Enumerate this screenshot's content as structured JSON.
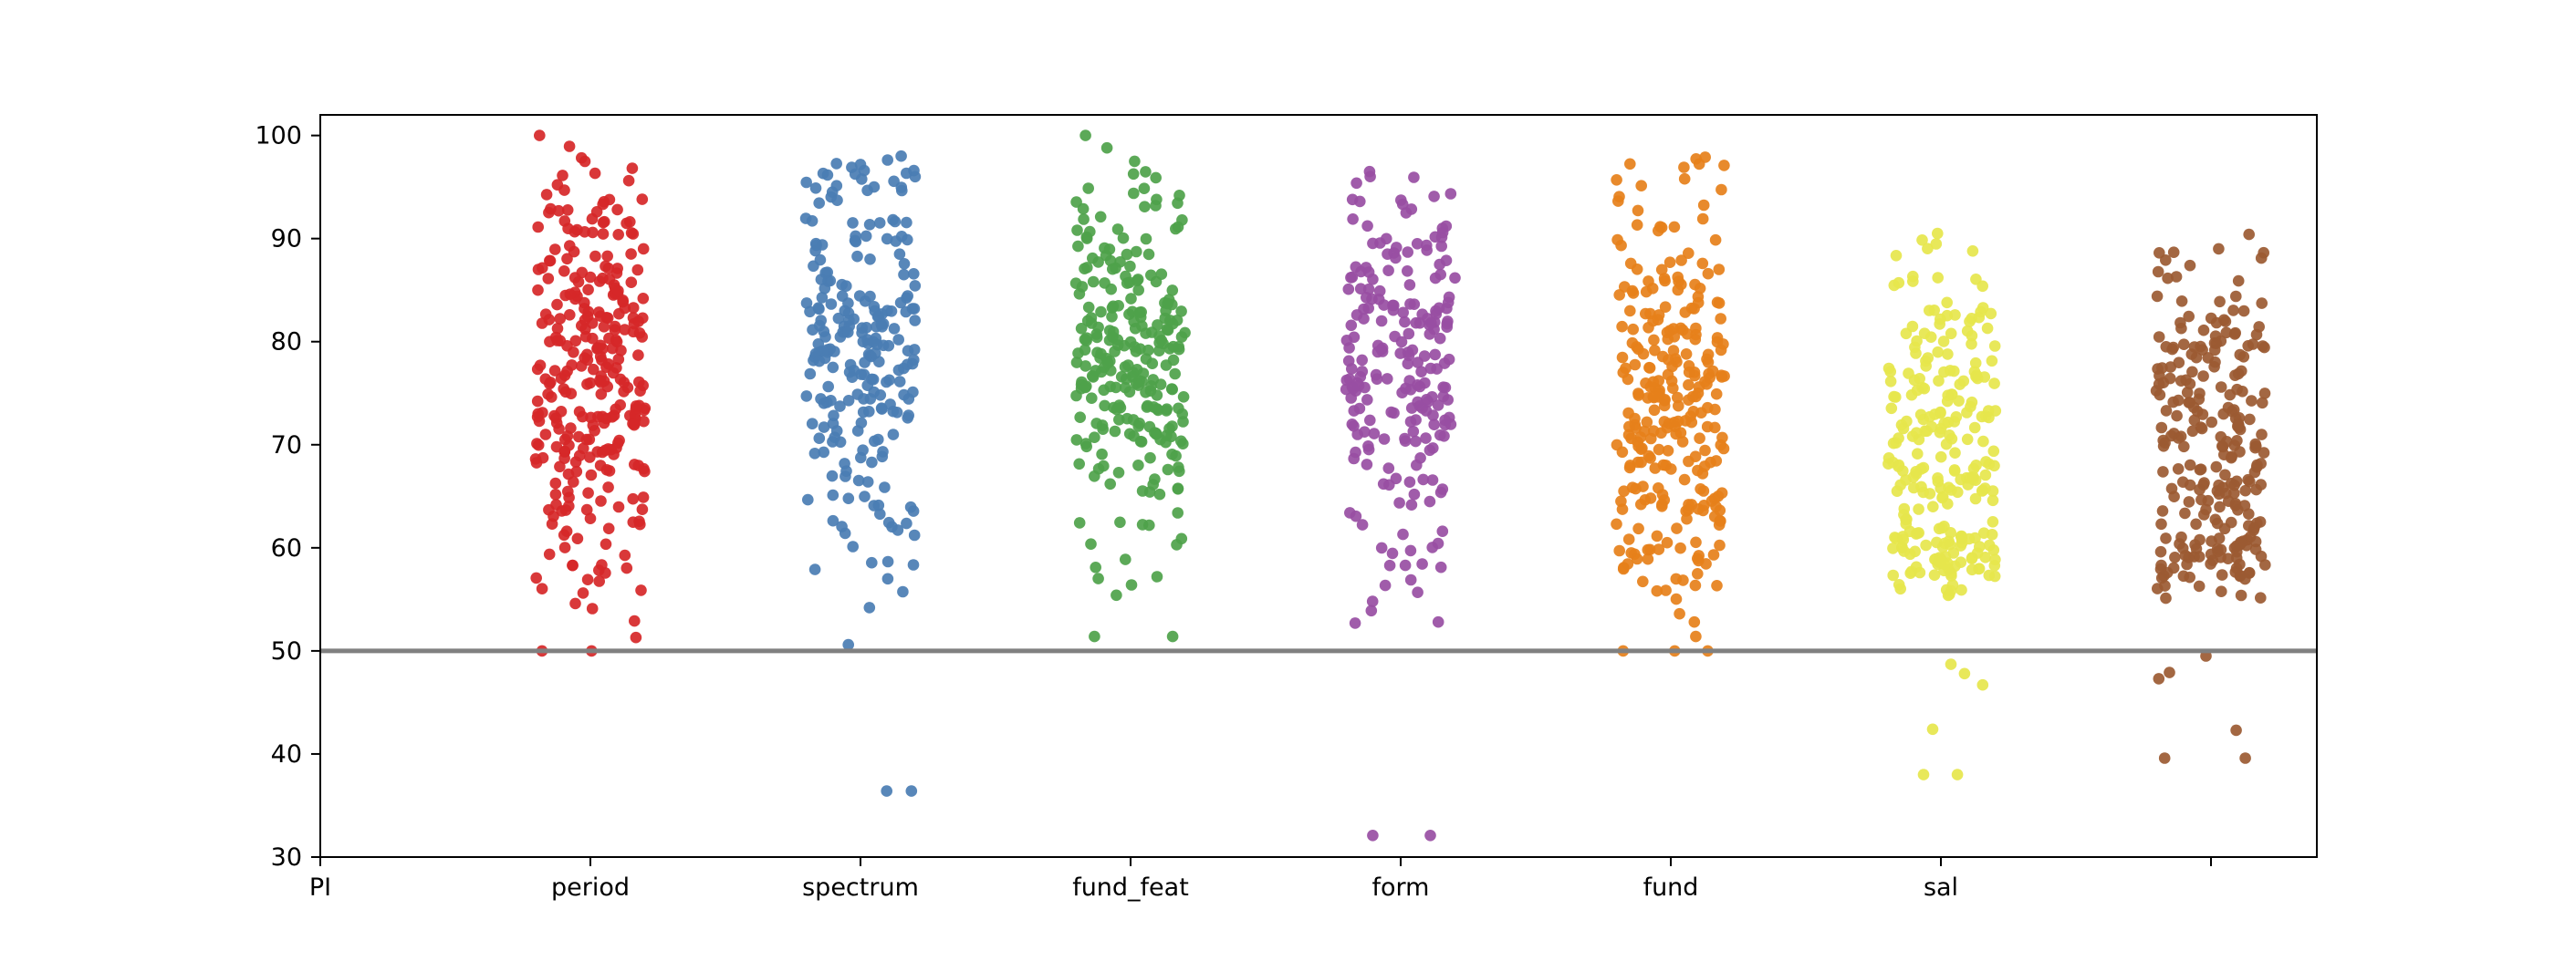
{
  "chart_data": {
    "type": "scatter",
    "subtype": "strip",
    "title": "",
    "xlabel": "",
    "ylabel": "",
    "ylim": [
      30,
      102
    ],
    "yticks": [
      30,
      40,
      50,
      60,
      70,
      80,
      90,
      100
    ],
    "xtick_labels": [
      "PI",
      "period",
      "spectrum",
      "fund_feat",
      "form",
      "fund",
      "sal",
      ""
    ],
    "reference_line": {
      "y": 50,
      "color": "#808080"
    },
    "grid": false,
    "legend": "none",
    "series": [
      {
        "category": "period",
        "color": "#d62728",
        "n": 300,
        "min": 50.0,
        "max": 100.0,
        "mean": 77,
        "spread": 11,
        "outliers": [
          50.0,
          51.3,
          52.9,
          54.1,
          54.6
        ]
      },
      {
        "category": "spectrum",
        "color": "#4a7db3",
        "n": 240,
        "min": 36.4,
        "max": 98.0,
        "mean": 81,
        "spread": 9,
        "outliers": [
          36.4,
          50.6,
          54.2,
          57.0,
          57.9
        ]
      },
      {
        "category": "fund_feat",
        "color": "#4ea24a",
        "n": 260,
        "min": 51.4,
        "max": 100.0,
        "mean": 79,
        "spread": 8,
        "outliers": [
          51.4,
          55.4,
          56.4,
          57.2,
          58.1
        ]
      },
      {
        "category": "form",
        "color": "#984ea3",
        "n": 220,
        "min": 32.1,
        "max": 96.5,
        "mean": 77,
        "spread": 9,
        "outliers": [
          32.1,
          52.7,
          52.8,
          53.9,
          54.8
        ]
      },
      {
        "category": "fund",
        "color": "#e6801a",
        "n": 280,
        "min": 50.0,
        "max": 97.9,
        "mean": 75,
        "spread": 10,
        "outliers": [
          50.0,
          50.0,
          51.4,
          52.8,
          53.6
        ]
      },
      {
        "category": "sal",
        "color": "#e6e64c",
        "n": 260,
        "min": 38.0,
        "max": 90.5,
        "mean": 68,
        "spread": 11,
        "outliers": [
          38.0,
          42.4,
          46.7,
          47.8,
          48.7
        ]
      },
      {
        "category": "",
        "color": "#9b5a32",
        "n": 260,
        "min": 39.6,
        "max": 90.4,
        "mean": 69,
        "spread": 10,
        "outliers": [
          39.6,
          42.3,
          47.3,
          47.9,
          49.5
        ]
      }
    ]
  }
}
